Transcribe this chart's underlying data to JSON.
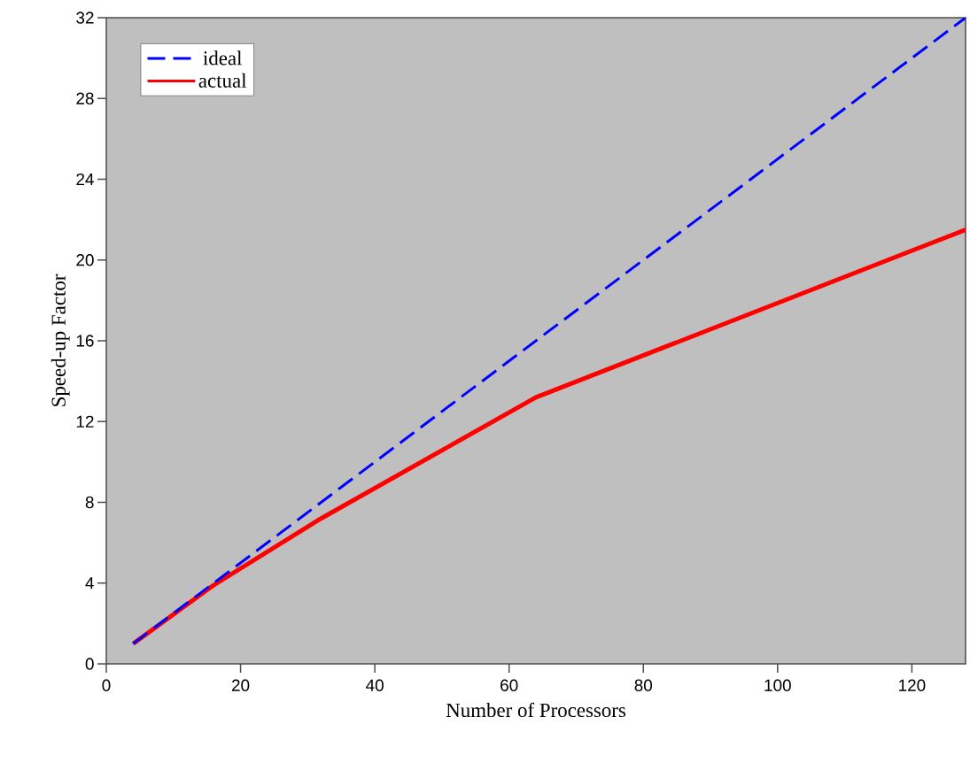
{
  "chart_data": {
    "type": "line",
    "xlabel": "Number of Processors",
    "ylabel": "Speed-up Factor",
    "xlim": [
      0,
      128
    ],
    "xticks": [
      0,
      20,
      40,
      60,
      80,
      100,
      120
    ],
    "ylim": [
      0,
      32
    ],
    "yticks": [
      0,
      4,
      8,
      12,
      16,
      20,
      24,
      28,
      32
    ],
    "series": [
      {
        "name": "ideal",
        "color": "#0000ff",
        "line_style": "dashed",
        "x": [
          4,
          8,
          16,
          32,
          64,
          128
        ],
        "values": [
          1,
          2,
          4,
          8,
          16,
          32
        ]
      },
      {
        "name": "actual",
        "color": "#ff0000",
        "line_style": "solid",
        "x": [
          4,
          16,
          32,
          64,
          128
        ],
        "values": [
          1,
          3.9,
          7.2,
          13.2,
          21.5
        ]
      }
    ],
    "legend": "top left",
    "marker": "none"
  }
}
